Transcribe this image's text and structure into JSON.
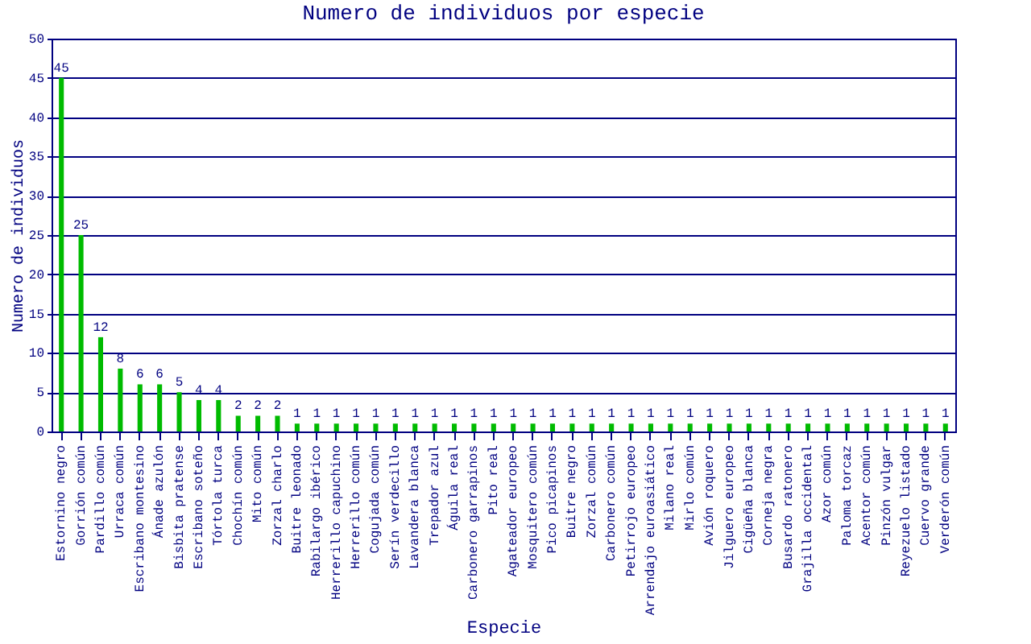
{
  "chart_data": {
    "type": "bar",
    "title": "Numero de individuos por especie",
    "xlabel": "Especie",
    "ylabel": "Numero de individuos",
    "categories": [
      "Estornino negro",
      "Gorrión común",
      "Pardillo común",
      "Urraca común",
      "Escribano montesino",
      "Ánade azulón",
      "Bisbita pratense",
      "Escribano soteño",
      "Tórtola turca",
      "Chochín común",
      "Mito común",
      "Zorzal charlo",
      "Buitre leonado",
      "Rabilargo ibérico",
      "Herrerillo capuchino",
      "Herrerillo común",
      "Cogujada común",
      "Serín verdecillo",
      "Lavandera blanca",
      "Trepador azul",
      "Águila real",
      "Carbonero garrapinos",
      "Pito real",
      "Agateador europeo",
      "Mosquitero común",
      "Pico picapinos",
      "Buitre negro",
      "Zorzal común",
      "Carbonero común",
      "Petirrojo europeo",
      "Arrendajo euroasiático",
      "Milano real",
      "Mirlo común",
      "Avión roquero",
      "Jilguero europeo",
      "Cigüeña blanca",
      "Corneja negra",
      "Busardo ratonero",
      "Grajilla occidental",
      "Azor común",
      "Paloma torcaz",
      "Acentor común",
      "Pinzón vulgar",
      "Reyezuelo listado",
      "Cuervo grande",
      "Verderón común"
    ],
    "values": [
      45,
      25,
      12,
      8,
      6,
      6,
      5,
      4,
      4,
      2,
      2,
      2,
      1,
      1,
      1,
      1,
      1,
      1,
      1,
      1,
      1,
      1,
      1,
      1,
      1,
      1,
      1,
      1,
      1,
      1,
      1,
      1,
      1,
      1,
      1,
      1,
      1,
      1,
      1,
      1,
      1,
      1,
      1,
      1,
      1,
      1
    ],
    "color": "#00bb00",
    "ylim": [
      0,
      50
    ],
    "yticks": [
      0,
      5,
      10,
      15,
      20,
      25,
      30,
      35,
      40,
      45,
      50
    ],
    "grid": "y",
    "data_labels": true
  }
}
